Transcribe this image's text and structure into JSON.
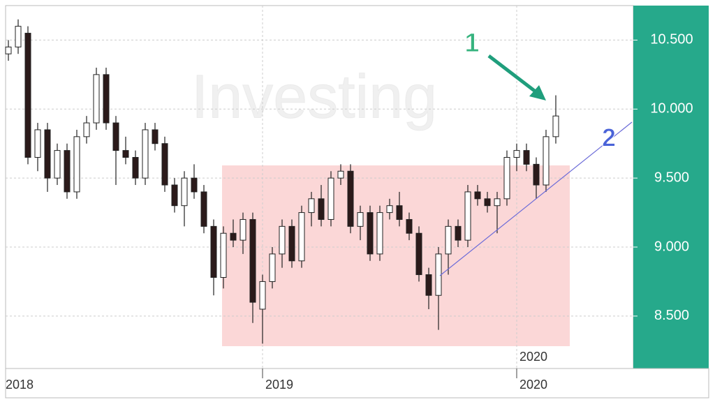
{
  "chart_data": {
    "type": "candlestick",
    "watermark": "Investing",
    "annotations": [
      "1",
      "2"
    ],
    "crosshair_label": "2020",
    "categories": [
      "2018",
      null,
      null,
      null,
      null,
      null,
      null,
      null,
      null,
      null,
      null,
      null,
      null,
      null,
      null,
      null,
      null,
      null,
      null,
      null,
      null,
      null,
      null,
      null,
      null,
      null,
      "2019",
      null,
      null,
      null,
      null,
      null,
      null,
      null,
      null,
      null,
      null,
      null,
      null,
      null,
      null,
      null,
      null,
      null,
      null,
      null,
      null,
      null,
      null,
      null,
      null,
      null,
      "2020",
      null,
      null,
      null,
      null
    ],
    "open": [
      10400,
      10450,
      10550,
      9650,
      9850,
      9500,
      9700,
      9400,
      9800,
      9900,
      10250,
      9900,
      9700,
      9650,
      9500,
      9850,
      9750,
      9450,
      9300,
      9500,
      9400,
      9150,
      8780,
      9100,
      9050,
      9200,
      8550,
      8750,
      8950,
      9150,
      8900,
      9250,
      9350,
      9200,
      9500,
      9550,
      9150,
      9250,
      8950,
      9250,
      9300,
      9200,
      9100,
      8800,
      8650,
      8950,
      9150,
      9050,
      9400,
      9350,
      9300,
      9350,
      9650,
      9700,
      9600,
      9450,
      9800
    ],
    "high": [
      10500,
      10650,
      10600,
      9900,
      9900,
      9750,
      9750,
      9850,
      9950,
      10300,
      10300,
      9950,
      9800,
      9700,
      9900,
      9900,
      9800,
      9500,
      9550,
      9600,
      9450,
      9200,
      9150,
      9200,
      9250,
      9250,
      8800,
      9000,
      9200,
      9200,
      9300,
      9400,
      9450,
      9550,
      9600,
      9600,
      9300,
      9300,
      9300,
      9350,
      9400,
      9250,
      9150,
      8850,
      9000,
      9200,
      9200,
      9450,
      9450,
      9400,
      9400,
      9700,
      9750,
      9750,
      9650,
      9850,
      10100
    ],
    "low": [
      10350,
      10400,
      9600,
      9550,
      9400,
      9450,
      9350,
      9350,
      9750,
      9850,
      9850,
      9450,
      9600,
      9450,
      9450,
      9700,
      9400,
      9250,
      9150,
      9350,
      9100,
      8650,
      8700,
      9000,
      8950,
      8450,
      8300,
      8700,
      8850,
      8850,
      8850,
      9150,
      9150,
      9150,
      9450,
      9100,
      9050,
      8900,
      8900,
      9200,
      9150,
      9050,
      8750,
      8550,
      8400,
      8800,
      9000,
      9000,
      9300,
      9250,
      9100,
      9300,
      9550,
      9550,
      9350,
      9400,
      9750
    ],
    "close": [
      10450,
      10600,
      9650,
      9850,
      9500,
      9700,
      9400,
      9800,
      9900,
      10250,
      9900,
      9700,
      9650,
      9500,
      9850,
      9750,
      9450,
      9300,
      9500,
      9400,
      9150,
      8780,
      9100,
      9050,
      9200,
      8600,
      8750,
      8950,
      9150,
      8900,
      9250,
      9350,
      9200,
      9500,
      9550,
      9150,
      9250,
      8950,
      9250,
      9300,
      9200,
      9100,
      8800,
      8650,
      8950,
      9150,
      9050,
      9400,
      9350,
      9300,
      9350,
      9650,
      9700,
      9600,
      9450,
      9800,
      9950
    ],
    "up_color": "#ffffff",
    "down_color": "#2b1a1a",
    "ylim": [
      8120,
      10750
    ],
    "yticks": [
      {
        "value": 8500,
        "label": "8.500"
      },
      {
        "value": 9000,
        "label": "9.000"
      },
      {
        "value": 9500,
        "label": "9.500"
      },
      {
        "value": 10000,
        "label": "10.000"
      },
      {
        "value": 10500,
        "label": "10.500"
      }
    ],
    "grid": true,
    "axis_color": "#26a98b"
  }
}
